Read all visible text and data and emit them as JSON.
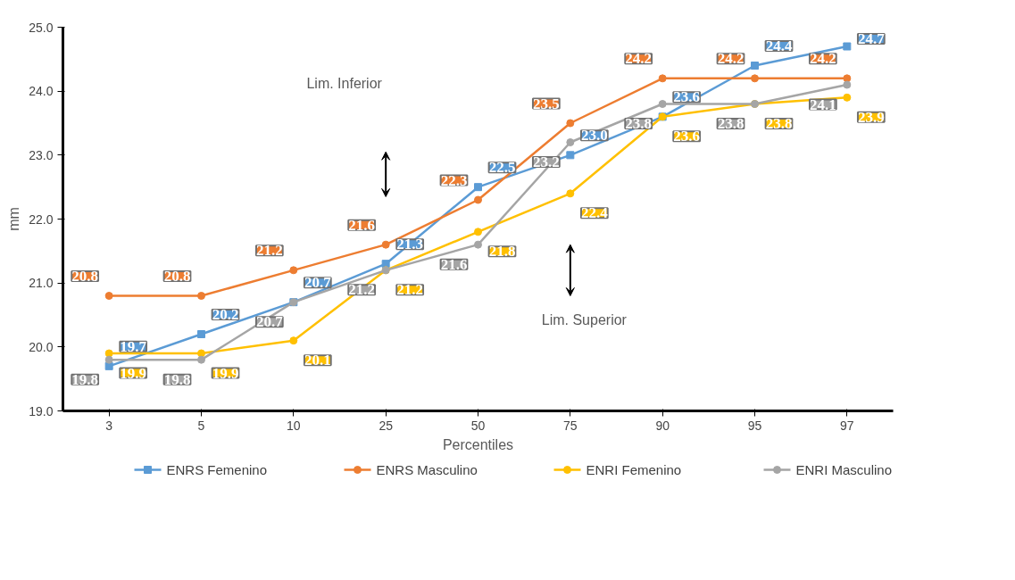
{
  "chart_data": {
    "type": "line",
    "xlabel": "Percentiles",
    "ylabel": "mm",
    "categories": [
      "3",
      "5",
      "10",
      "25",
      "50",
      "75",
      "90",
      "95",
      "97"
    ],
    "series": [
      {
        "name": "ENRS Femenino",
        "color": "#5b9bd5",
        "marker": "square",
        "values": [
          19.7,
          20.2,
          20.7,
          21.3,
          22.5,
          23.0,
          23.6,
          24.4,
          24.7
        ],
        "value_labels": [
          "19.7",
          "20.2",
          "20.7",
          "21.3",
          "22.5",
          "23.0",
          "23.6",
          "24.4",
          "24.7"
        ]
      },
      {
        "name": "ENRS Masculino",
        "color": "#ed7d31",
        "marker": "circle",
        "values": [
          20.8,
          20.8,
          21.2,
          21.6,
          22.3,
          23.5,
          24.2,
          24.2,
          24.2
        ],
        "value_labels": [
          "20.8",
          "20.8",
          "21.2",
          "21.6",
          "22.3",
          "23.5",
          "24.2",
          "24.2",
          "24.2"
        ]
      },
      {
        "name": "ENRI Femenino",
        "color": "#ffc000",
        "marker": "circle",
        "values": [
          19.9,
          19.9,
          20.1,
          21.2,
          21.8,
          22.4,
          23.6,
          23.8,
          23.9
        ],
        "value_labels": [
          "19.9",
          "19.9",
          "20.1",
          "21.2",
          "21.8",
          "22.4",
          "23.6",
          "23.8",
          "23.9"
        ]
      },
      {
        "name": "ENRI Masculino",
        "color": "#a5a5a5",
        "marker": "circle",
        "values": [
          19.8,
          19.8,
          20.7,
          21.2,
          21.6,
          23.2,
          23.8,
          23.8,
          24.1
        ],
        "value_labels": [
          "19.8",
          "19.8",
          "20.7",
          "21.2",
          "21.6",
          "23.2",
          "23.8",
          "23.8",
          "24.1"
        ]
      }
    ],
    "ylim": [
      19.0,
      25.0
    ],
    "yticks": [
      {
        "value": 19,
        "label": "19.0"
      },
      {
        "value": 20,
        "label": "20.0"
      },
      {
        "value": 21,
        "label": "21.0"
      },
      {
        "value": 22,
        "label": "22.0"
      },
      {
        "value": 23,
        "label": "23.0"
      },
      {
        "value": 24,
        "label": "24.0"
      },
      {
        "value": 25,
        "label": "25.0"
      }
    ],
    "annotations": [
      "Lim. Inferior",
      "Lim. Superior"
    ],
    "grid": false,
    "legend": "bottom",
    "line_style": "solid"
  }
}
